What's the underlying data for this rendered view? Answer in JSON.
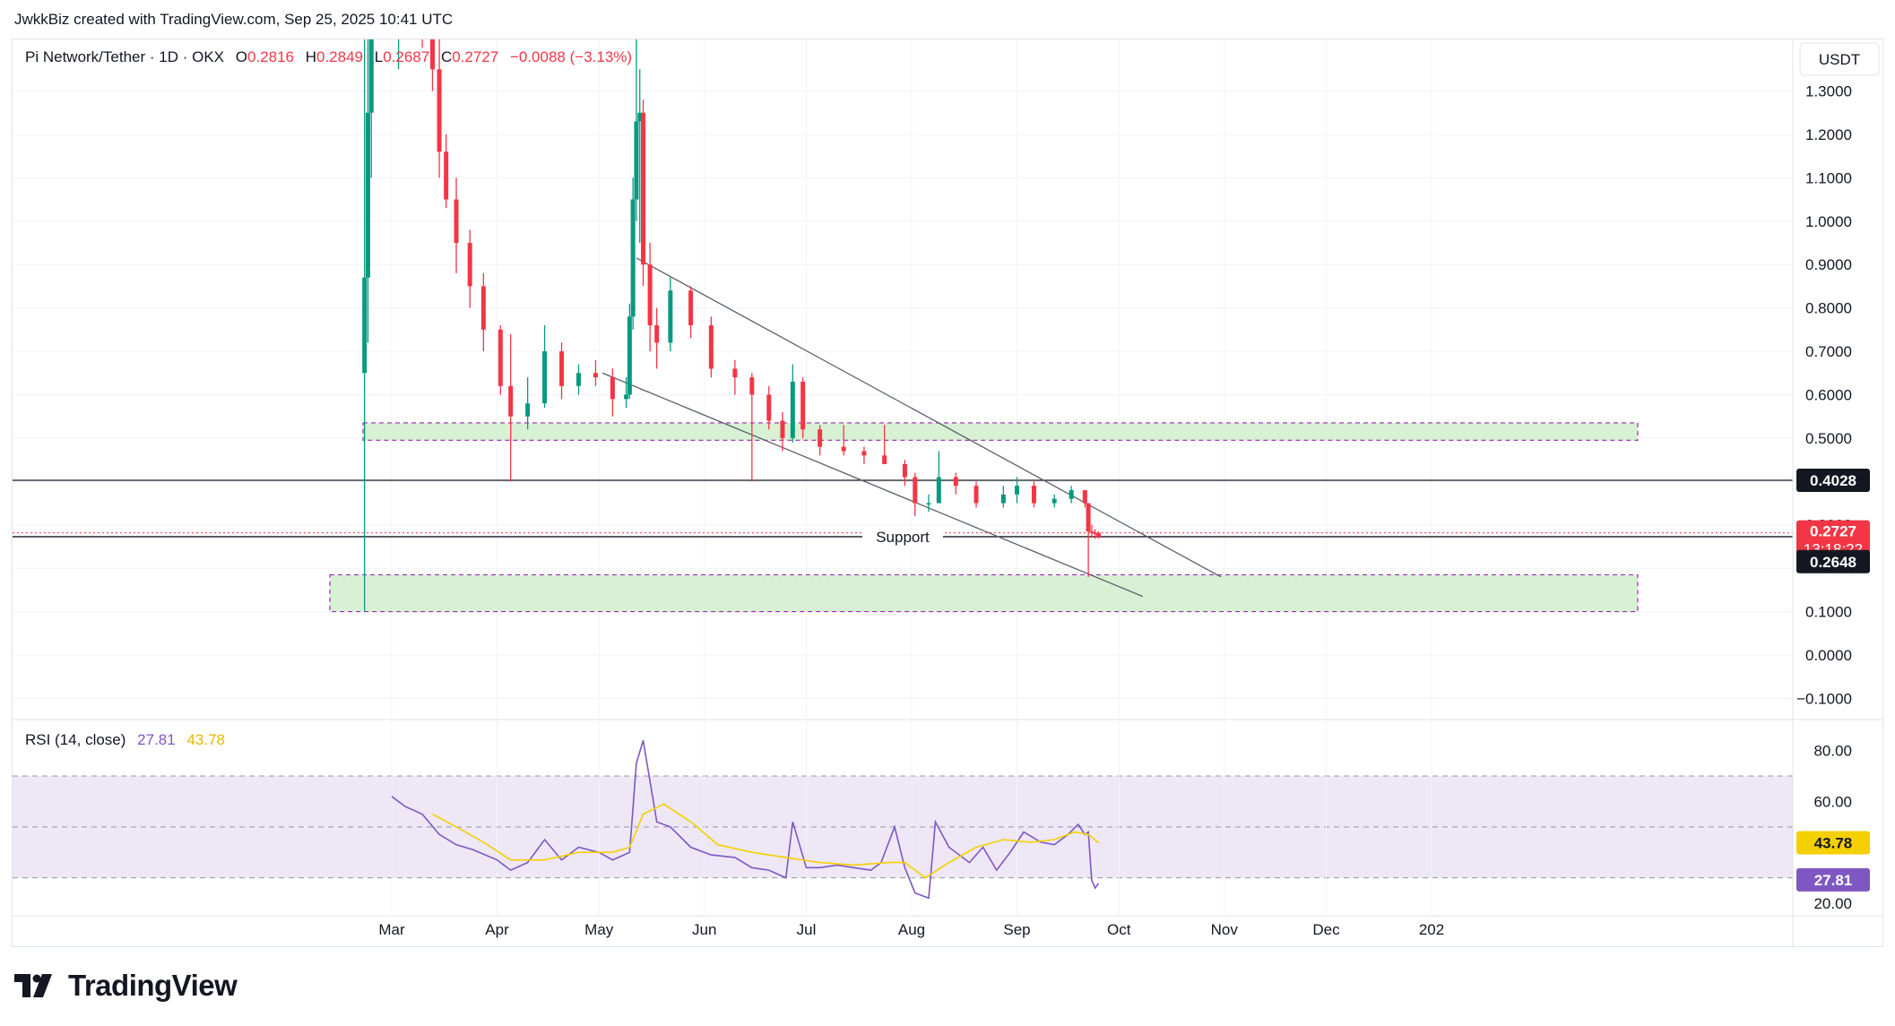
{
  "header": {
    "credit": "JwkkBiz created with TradingView.com, Sep 25, 2025 10:41 UTC"
  },
  "footer": {
    "brand": "TradingView"
  },
  "legend": {
    "symbol": "Pi Network/Tether · 1D · OKX",
    "o_label": "O",
    "o_value": "0.2816",
    "h_label": "H",
    "h_value": "0.2849",
    "l_label": "L",
    "l_value": "0.2687",
    "c_label": "C",
    "c_value": "0.2727",
    "change": "−0.0088 (−3.13%)"
  },
  "rsi_legend": {
    "label": "RSI (14, close)",
    "rsi_value": "27.81",
    "ma_value": "43.78"
  },
  "currency": "USDT",
  "price_axis_labels": [
    "1.3000",
    "1.2000",
    "1.1000",
    "1.0000",
    "0.9000",
    "0.8000",
    "0.7000",
    "0.6000",
    "0.5000",
    "0.3000",
    "0.1000",
    "0.0000",
    "−0.1000"
  ],
  "rsi_axis_labels": [
    "80.00",
    "60.00",
    "20.00"
  ],
  "time_labels": [
    "Mar",
    "Apr",
    "May",
    "Jun",
    "Jul",
    "Aug",
    "Sep",
    "Oct",
    "Nov",
    "Dec",
    "202"
  ],
  "price_badges": {
    "level": "0.4028",
    "last": "0.2727",
    "countdown": "13:18:22",
    "low": "0.2648",
    "rsi_ma": "43.78",
    "rsi": "27.81"
  },
  "annotations": {
    "support": "Support"
  },
  "colors": {
    "up": "#089981",
    "down": "#f23645",
    "rsi": "#7e57c2",
    "rsi_ma": "#f5d000",
    "zone_fill": "#d8f0d4",
    "zone_border": "#9c27b0",
    "rsi_band": "#ede7f6"
  },
  "chart_data": [
    {
      "type": "candlestick",
      "title": "Pi Network/Tether · 1D · OKX",
      "x_range": [
        "2025-02-20",
        "2026-01-01"
      ],
      "ylim": [
        -0.13,
        1.42
      ],
      "horizontal_levels": [
        0.4028,
        0.2727
      ],
      "support_level": 0.2727,
      "zones": [
        [
          0.495,
          0.535
        ],
        [
          0.1,
          0.185
        ]
      ],
      "trendlines": [
        {
          "from": [
            "2025-05-12",
            0.915
          ],
          "to": [
            "2025-10-31",
            0.18
          ]
        },
        {
          "from": [
            "2025-05-02",
            0.65
          ],
          "to": [
            "2025-10-08",
            0.135
          ]
        }
      ],
      "candles": [
        {
          "t": "2025-02-21",
          "o": 0.65,
          "h": 1.8,
          "l": 0.1,
          "c": 0.87
        },
        {
          "t": "2025-02-22",
          "o": 0.87,
          "h": 1.5,
          "l": 0.72,
          "c": 1.25
        },
        {
          "t": "2025-02-23",
          "o": 1.25,
          "h": 1.8,
          "l": 1.1,
          "c": 1.6
        },
        {
          "t": "2025-03-03",
          "o": 1.6,
          "h": 1.8,
          "l": 1.35,
          "c": 1.7
        },
        {
          "t": "2025-03-10",
          "o": 1.7,
          "h": 1.9,
          "l": 1.4,
          "c": 1.6
        },
        {
          "t": "2025-03-13",
          "o": 1.6,
          "h": 1.75,
          "l": 1.3,
          "c": 1.35
        },
        {
          "t": "2025-03-15",
          "o": 1.35,
          "h": 1.45,
          "l": 1.1,
          "c": 1.16
        },
        {
          "t": "2025-03-17",
          "o": 1.16,
          "h": 1.2,
          "l": 1.03,
          "c": 1.05
        },
        {
          "t": "2025-03-20",
          "o": 1.05,
          "h": 1.1,
          "l": 0.88,
          "c": 0.95
        },
        {
          "t": "2025-03-24",
          "o": 0.95,
          "h": 0.98,
          "l": 0.8,
          "c": 0.85
        },
        {
          "t": "2025-03-28",
          "o": 0.85,
          "h": 0.88,
          "l": 0.7,
          "c": 0.75
        },
        {
          "t": "2025-04-02",
          "o": 0.75,
          "h": 0.76,
          "l": 0.6,
          "c": 0.62
        },
        {
          "t": "2025-04-05",
          "o": 0.62,
          "h": 0.74,
          "l": 0.4,
          "c": 0.55
        },
        {
          "t": "2025-04-10",
          "o": 0.55,
          "h": 0.64,
          "l": 0.52,
          "c": 0.58
        },
        {
          "t": "2025-04-15",
          "o": 0.58,
          "h": 0.76,
          "l": 0.57,
          "c": 0.7
        },
        {
          "t": "2025-04-20",
          "o": 0.7,
          "h": 0.72,
          "l": 0.59,
          "c": 0.62
        },
        {
          "t": "2025-04-25",
          "o": 0.62,
          "h": 0.67,
          "l": 0.6,
          "c": 0.65
        },
        {
          "t": "2025-04-30",
          "o": 0.65,
          "h": 0.68,
          "l": 0.62,
          "c": 0.64
        },
        {
          "t": "2025-05-05",
          "o": 0.64,
          "h": 0.66,
          "l": 0.55,
          "c": 0.59
        },
        {
          "t": "2025-05-09",
          "o": 0.59,
          "h": 0.64,
          "l": 0.57,
          "c": 0.6
        },
        {
          "t": "2025-05-10",
          "o": 0.6,
          "h": 0.81,
          "l": 0.59,
          "c": 0.78
        },
        {
          "t": "2025-05-11",
          "o": 0.78,
          "h": 1.1,
          "l": 0.75,
          "c": 1.05
        },
        {
          "t": "2025-05-12",
          "o": 1.05,
          "h": 1.67,
          "l": 1.0,
          "c": 1.23
        },
        {
          "t": "2025-05-13",
          "o": 1.23,
          "h": 1.35,
          "l": 0.95,
          "c": 1.25
        },
        {
          "t": "2025-05-14",
          "o": 1.25,
          "h": 1.28,
          "l": 0.85,
          "c": 0.9
        },
        {
          "t": "2025-05-16",
          "o": 0.9,
          "h": 0.95,
          "l": 0.7,
          "c": 0.76
        },
        {
          "t": "2025-05-18",
          "o": 0.76,
          "h": 0.8,
          "l": 0.66,
          "c": 0.72
        },
        {
          "t": "2025-05-22",
          "o": 0.72,
          "h": 0.87,
          "l": 0.7,
          "c": 0.84
        },
        {
          "t": "2025-05-28",
          "o": 0.84,
          "h": 0.85,
          "l": 0.73,
          "c": 0.76
        },
        {
          "t": "2025-06-03",
          "o": 0.76,
          "h": 0.78,
          "l": 0.64,
          "c": 0.66
        },
        {
          "t": "2025-06-10",
          "o": 0.66,
          "h": 0.68,
          "l": 0.6,
          "c": 0.64
        },
        {
          "t": "2025-06-15",
          "o": 0.64,
          "h": 0.65,
          "l": 0.4,
          "c": 0.6
        },
        {
          "t": "2025-06-20",
          "o": 0.6,
          "h": 0.62,
          "l": 0.52,
          "c": 0.54
        },
        {
          "t": "2025-06-24",
          "o": 0.54,
          "h": 0.56,
          "l": 0.47,
          "c": 0.5
        },
        {
          "t": "2025-06-27",
          "o": 0.5,
          "h": 0.67,
          "l": 0.49,
          "c": 0.63
        },
        {
          "t": "2025-06-30",
          "o": 0.63,
          "h": 0.64,
          "l": 0.5,
          "c": 0.52
        },
        {
          "t": "2025-07-05",
          "o": 0.52,
          "h": 0.53,
          "l": 0.46,
          "c": 0.48
        },
        {
          "t": "2025-07-12",
          "o": 0.48,
          "h": 0.53,
          "l": 0.46,
          "c": 0.47
        },
        {
          "t": "2025-07-18",
          "o": 0.47,
          "h": 0.48,
          "l": 0.44,
          "c": 0.46
        },
        {
          "t": "2025-07-24",
          "o": 0.46,
          "h": 0.53,
          "l": 0.45,
          "c": 0.44
        },
        {
          "t": "2025-07-30",
          "o": 0.44,
          "h": 0.45,
          "l": 0.39,
          "c": 0.41
        },
        {
          "t": "2025-08-02",
          "o": 0.41,
          "h": 0.42,
          "l": 0.32,
          "c": 0.35
        },
        {
          "t": "2025-08-06",
          "o": 0.35,
          "h": 0.37,
          "l": 0.33,
          "c": 0.35
        },
        {
          "t": "2025-08-09",
          "o": 0.35,
          "h": 0.47,
          "l": 0.35,
          "c": 0.41
        },
        {
          "t": "2025-08-14",
          "o": 0.41,
          "h": 0.42,
          "l": 0.37,
          "c": 0.39
        },
        {
          "t": "2025-08-20",
          "o": 0.39,
          "h": 0.4,
          "l": 0.34,
          "c": 0.35
        },
        {
          "t": "2025-08-28",
          "o": 0.35,
          "h": 0.39,
          "l": 0.34,
          "c": 0.37
        },
        {
          "t": "2025-09-01",
          "o": 0.37,
          "h": 0.41,
          "l": 0.35,
          "c": 0.39
        },
        {
          "t": "2025-09-06",
          "o": 0.39,
          "h": 0.4,
          "l": 0.34,
          "c": 0.35
        },
        {
          "t": "2025-09-12",
          "o": 0.35,
          "h": 0.37,
          "l": 0.34,
          "c": 0.36
        },
        {
          "t": "2025-09-17",
          "o": 0.36,
          "h": 0.39,
          "l": 0.35,
          "c": 0.38
        },
        {
          "t": "2025-09-21",
          "o": 0.38,
          "h": 0.38,
          "l": 0.34,
          "c": 0.35
        },
        {
          "t": "2025-09-22",
          "o": 0.35,
          "h": 0.35,
          "l": 0.18,
          "c": 0.285
        },
        {
          "t": "2025-09-23",
          "o": 0.285,
          "h": 0.3,
          "l": 0.27,
          "c": 0.282
        },
        {
          "t": "2025-09-24",
          "o": 0.282,
          "h": 0.29,
          "l": 0.268,
          "c": 0.2816
        },
        {
          "t": "2025-09-25",
          "o": 0.2816,
          "h": 0.2849,
          "l": 0.2687,
          "c": 0.2727
        }
      ]
    },
    {
      "type": "line",
      "title": "RSI (14, close)",
      "ylim": [
        16,
        86
      ],
      "bands": [
        70,
        50,
        30
      ],
      "series": [
        {
          "name": "RSI",
          "x": [
            "2025-03-01",
            "2025-03-05",
            "2025-03-10",
            "2025-03-15",
            "2025-03-20",
            "2025-03-25",
            "2025-04-01",
            "2025-04-05",
            "2025-04-10",
            "2025-04-15",
            "2025-04-20",
            "2025-04-25",
            "2025-05-01",
            "2025-05-05",
            "2025-05-10",
            "2025-05-12",
            "2025-05-14",
            "2025-05-18",
            "2025-05-22",
            "2025-05-28",
            "2025-06-03",
            "2025-06-10",
            "2025-06-15",
            "2025-06-20",
            "2025-06-25",
            "2025-06-27",
            "2025-07-01",
            "2025-07-05",
            "2025-07-10",
            "2025-07-15",
            "2025-07-20",
            "2025-07-23",
            "2025-07-27",
            "2025-07-30",
            "2025-08-02",
            "2025-08-06",
            "2025-08-08",
            "2025-08-12",
            "2025-08-18",
            "2025-08-22",
            "2025-08-26",
            "2025-08-30",
            "2025-09-03",
            "2025-09-08",
            "2025-09-12",
            "2025-09-16",
            "2025-09-19",
            "2025-09-21",
            "2025-09-22",
            "2025-09-23",
            "2025-09-24",
            "2025-09-25"
          ],
          "values": [
            62,
            58,
            55,
            47,
            43,
            41,
            37,
            33,
            36,
            45,
            37,
            42,
            40,
            37,
            40,
            75,
            84,
            52,
            50,
            42,
            39,
            38,
            34,
            33,
            30,
            52,
            34,
            34,
            35,
            34,
            33,
            36,
            50,
            34,
            24,
            22,
            52,
            42,
            36,
            42,
            33,
            40,
            48,
            44,
            43,
            47,
            51,
            47,
            48,
            29,
            26,
            27.81
          ]
        },
        {
          "name": "RSI MA",
          "x": [
            "2025-03-13",
            "2025-03-20",
            "2025-03-28",
            "2025-04-05",
            "2025-04-15",
            "2025-04-25",
            "2025-05-05",
            "2025-05-10",
            "2025-05-14",
            "2025-05-20",
            "2025-05-28",
            "2025-06-05",
            "2025-06-15",
            "2025-06-25",
            "2025-07-05",
            "2025-07-15",
            "2025-07-25",
            "2025-07-30",
            "2025-08-05",
            "2025-08-12",
            "2025-08-20",
            "2025-08-28",
            "2025-09-05",
            "2025-09-12",
            "2025-09-18",
            "2025-09-22",
            "2025-09-25"
          ],
          "values": [
            55,
            50,
            44,
            37,
            37,
            40,
            40,
            42,
            55,
            59,
            52,
            43,
            40,
            38,
            36,
            35,
            36,
            36,
            30,
            36,
            42,
            45,
            44,
            45,
            48,
            47,
            43.78
          ]
        }
      ]
    }
  ]
}
